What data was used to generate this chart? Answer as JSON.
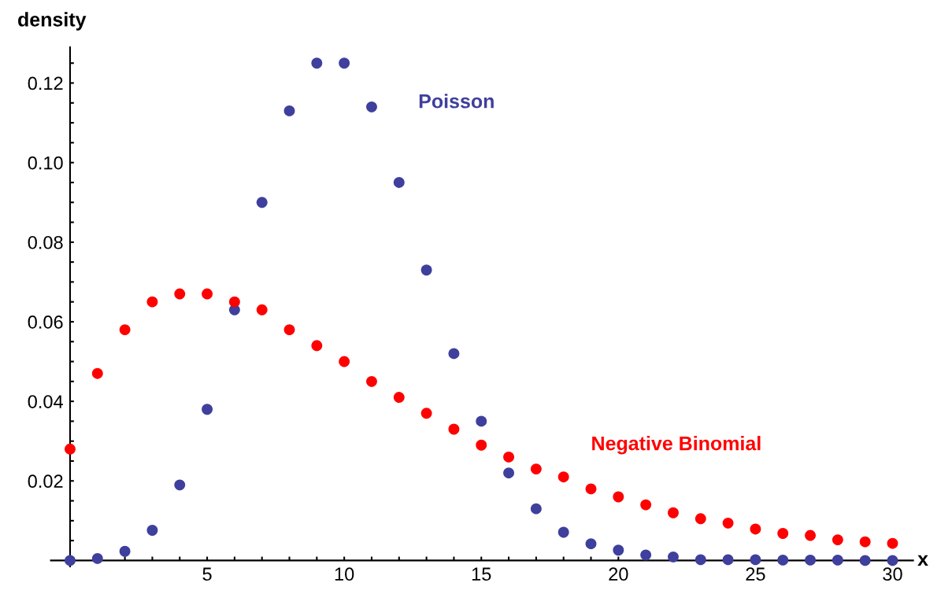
{
  "chart_data": {
    "type": "scatter",
    "xlabel": "x",
    "ylabel": "density",
    "x": [
      0,
      1,
      2,
      3,
      4,
      5,
      6,
      7,
      8,
      9,
      10,
      11,
      12,
      13,
      14,
      15,
      16,
      17,
      18,
      19,
      20,
      21,
      22,
      23,
      24,
      25,
      26,
      27,
      28,
      29,
      30
    ],
    "series": [
      {
        "name": "Poisson",
        "color": "#3f3f9d",
        "values": [
          0.0,
          0.0005,
          0.0023,
          0.0076,
          0.019,
          0.038,
          0.063,
          0.09,
          0.113,
          0.125,
          0.125,
          0.114,
          0.095,
          0.073,
          0.052,
          0.035,
          0.022,
          0.013,
          0.0071,
          0.0042,
          0.0026,
          0.0014,
          0.0009,
          0.0002,
          0.0002,
          0.0002,
          0.0001,
          0.0001,
          0.0001,
          0.0,
          0.0
        ]
      },
      {
        "name": "Negative Binomial",
        "color": "#ff0000",
        "values": [
          0.028,
          0.047,
          0.058,
          0.065,
          0.067,
          0.067,
          0.065,
          0.063,
          0.058,
          0.054,
          0.05,
          0.045,
          0.041,
          0.037,
          0.033,
          0.029,
          0.026,
          0.023,
          0.021,
          0.018,
          0.016,
          0.014,
          0.012,
          0.0105,
          0.0094,
          0.0079,
          0.0068,
          0.0063,
          0.0052,
          0.0047,
          0.0043
        ]
      }
    ],
    "xlim": [
      -0.7,
      30.75
    ],
    "ylim": [
      -0.0015,
      0.129
    ],
    "xticks": [
      {
        "value": 1,
        "label": null
      },
      {
        "value": 2,
        "label": null
      },
      {
        "value": 3,
        "label": null
      },
      {
        "value": 4,
        "label": null
      },
      5,
      {
        "value": 6,
        "label": null
      },
      {
        "value": 7,
        "label": null
      },
      {
        "value": 8,
        "label": null
      },
      {
        "value": 9,
        "label": null
      },
      10,
      {
        "value": 11,
        "label": null
      },
      {
        "value": 12,
        "label": null
      },
      {
        "value": 13,
        "label": null
      },
      {
        "value": 14,
        "label": null
      },
      15,
      {
        "value": 16,
        "label": null
      },
      {
        "value": 17,
        "label": null
      },
      {
        "value": 18,
        "label": null
      },
      {
        "value": 19,
        "label": null
      },
      20,
      {
        "value": 21,
        "label": null
      },
      {
        "value": 22,
        "label": null
      },
      {
        "value": 23,
        "label": null
      },
      {
        "value": 24,
        "label": null
      },
      25,
      {
        "value": 26,
        "label": null
      },
      {
        "value": 27,
        "label": null
      },
      {
        "value": 28,
        "label": null
      },
      {
        "value": 29,
        "label": null
      },
      30
    ],
    "yticks": [
      {
        "value": 0.005,
        "label": null
      },
      {
        "value": 0.01,
        "label": null
      },
      {
        "value": 0.015,
        "label": null
      },
      {
        "value": 0.02,
        "label": "0.02"
      },
      {
        "value": 0.025,
        "label": null
      },
      {
        "value": 0.03,
        "label": null
      },
      {
        "value": 0.035,
        "label": null
      },
      {
        "value": 0.04,
        "label": "0.04"
      },
      {
        "value": 0.045,
        "label": null
      },
      {
        "value": 0.05,
        "label": null
      },
      {
        "value": 0.055,
        "label": null
      },
      {
        "value": 0.06,
        "label": "0.06"
      },
      {
        "value": 0.065,
        "label": null
      },
      {
        "value": 0.07,
        "label": null
      },
      {
        "value": 0.075,
        "label": null
      },
      {
        "value": 0.08,
        "label": "0.08"
      },
      {
        "value": 0.085,
        "label": null
      },
      {
        "value": 0.09,
        "label": null
      },
      {
        "value": 0.095,
        "label": null
      },
      {
        "value": 0.1,
        "label": "0.10"
      },
      {
        "value": 0.105,
        "label": null
      },
      {
        "value": 0.11,
        "label": null
      },
      {
        "value": 0.115,
        "label": null
      },
      {
        "value": 0.12,
        "label": "0.12"
      },
      {
        "value": 0.125,
        "label": null
      }
    ],
    "marker": "circle",
    "grid": false,
    "legend": false
  }
}
